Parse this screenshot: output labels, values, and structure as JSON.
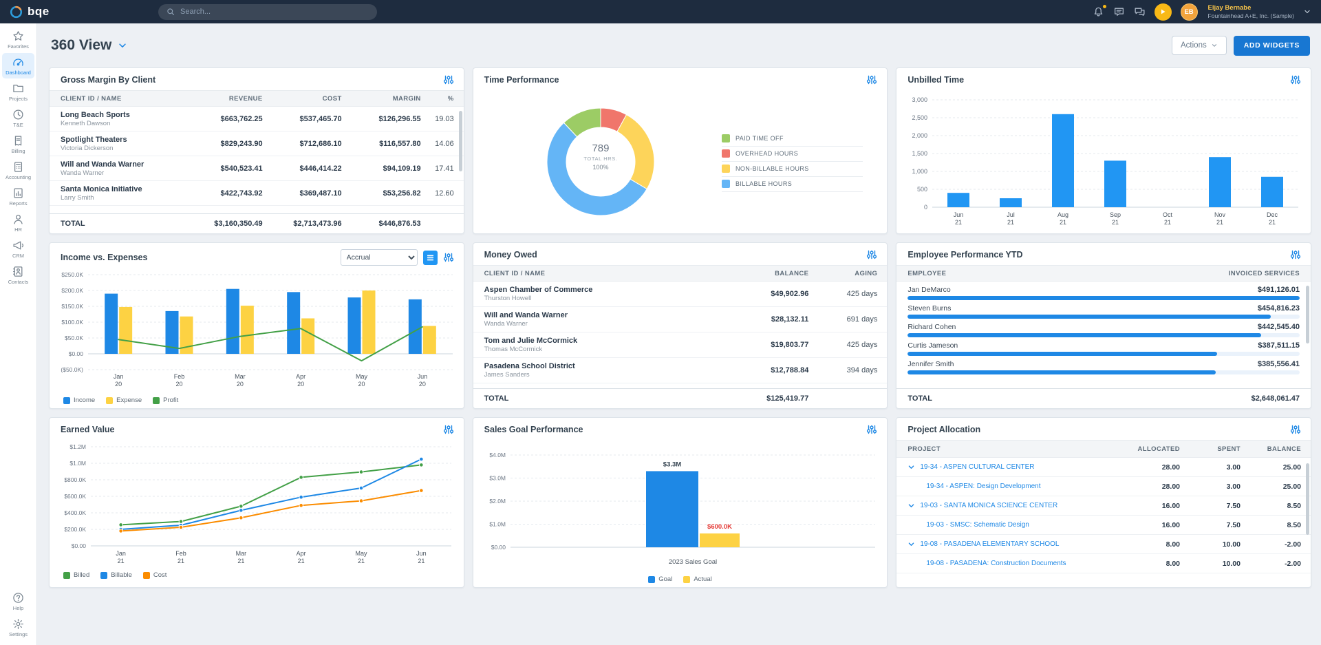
{
  "topbar": {
    "logo_text": "bqe",
    "search_placeholder": "Search...",
    "user": {
      "name": "Eljay Bernabe",
      "company": "Fountainhead A+E, Inc. (Sample)",
      "initials": "EB"
    }
  },
  "sidebar": {
    "items": [
      {
        "label": "Favorites",
        "icon": "star-icon",
        "active": false
      },
      {
        "label": "Dashboard",
        "icon": "gauge-icon",
        "active": true
      },
      {
        "label": "Projects",
        "icon": "folder-icon",
        "active": false
      },
      {
        "label": "T&E",
        "icon": "clock-icon",
        "active": false
      },
      {
        "label": "Billing",
        "icon": "receipt-icon",
        "active": false
      },
      {
        "label": "Accounting",
        "icon": "calculator-icon",
        "active": false
      },
      {
        "label": "Reports",
        "icon": "report-icon",
        "active": false
      },
      {
        "label": "HR",
        "icon": "person-icon",
        "active": false
      },
      {
        "label": "CRM",
        "icon": "megaphone-icon",
        "active": false
      },
      {
        "label": "Contacts",
        "icon": "contacts-icon",
        "active": false
      }
    ],
    "bottom": [
      {
        "label": "Help",
        "icon": "help-icon"
      },
      {
        "label": "Settings",
        "icon": "gear-icon"
      }
    ]
  },
  "page": {
    "title": "360 View",
    "actions": "Actions",
    "add_widgets": "ADD WIDGETS"
  },
  "gross_margin": {
    "title": "Gross Margin By Client",
    "columns": [
      "CLIENT ID / NAME",
      "REVENUE",
      "COST",
      "MARGIN",
      "%"
    ],
    "rows": [
      {
        "name": "Long Beach Sports",
        "sub": "Kenneth Dawson",
        "revenue": "$663,762.25",
        "cost": "$537,465.70",
        "margin": "$126,296.55",
        "pct": "19.03"
      },
      {
        "name": "Spotlight Theaters",
        "sub": "Victoria Dickerson",
        "revenue": "$829,243.90",
        "cost": "$712,686.10",
        "margin": "$116,557.80",
        "pct": "14.06"
      },
      {
        "name": "Will and Wanda Warner",
        "sub": "Wanda Warner",
        "revenue": "$540,523.41",
        "cost": "$446,414.22",
        "margin": "$94,109.19",
        "pct": "17.41"
      },
      {
        "name": "Santa Monica Initiative",
        "sub": "Larry Smith",
        "revenue": "$422,743.92",
        "cost": "$369,487.10",
        "margin": "$53,256.82",
        "pct": "12.60"
      }
    ],
    "total": {
      "label": "TOTAL",
      "revenue": "$3,160,350.49",
      "cost": "$2,713,473.96",
      "margin": "$446,876.53"
    }
  },
  "time_performance": {
    "title": "Time Performance",
    "center": {
      "value": "789",
      "label": "TOTAL HRS.",
      "percent": "100%"
    },
    "chart_data": {
      "type": "pie",
      "total_hours": 789,
      "slices": [
        {
          "label": "PAID TIME OFF",
          "value": 95,
          "color": "#9CCC65"
        },
        {
          "label": "OVERHEAD HOURS",
          "value": 63,
          "color": "#F0766B"
        },
        {
          "label": "NON-BILLABLE HOURS",
          "value": 201,
          "color": "#FDD45A"
        },
        {
          "label": "BILLABLE HOURS",
          "value": 430,
          "color": "#64B5F6"
        }
      ]
    }
  },
  "unbilled_time": {
    "title": "Unbilled Time",
    "chart_data": {
      "type": "bar",
      "categories": [
        "Jun",
        "Jul",
        "Aug",
        "Sep",
        "Oct",
        "Nov",
        "Dec"
      ],
      "year": "21",
      "values": [
        400,
        250,
        2600,
        1300,
        0,
        1400,
        850
      ],
      "color": "#2196F3",
      "ylim": [
        0,
        3000
      ],
      "yticks": [
        0,
        500,
        1000,
        1500,
        2000,
        2500,
        3000
      ],
      "ytick_labels": [
        "0",
        "500",
        "1,000",
        "1,500",
        "2,000",
        "2,500",
        "3,000"
      ]
    }
  },
  "income_expenses": {
    "title": "Income vs. Expenses",
    "basis_selected": "Accrual",
    "chart_data": {
      "type": "bar+line",
      "categories": [
        "Jan",
        "Feb",
        "Mar",
        "Apr",
        "May",
        "Jun"
      ],
      "year": "20",
      "series": [
        {
          "name": "Income",
          "kind": "bar",
          "color": "#1E88E5",
          "values": [
            190000,
            135000,
            205000,
            195000,
            178000,
            172000
          ]
        },
        {
          "name": "Expense",
          "kind": "bar",
          "color": "#FDD243",
          "values": [
            148000,
            118000,
            152000,
            112000,
            200000,
            88000
          ]
        },
        {
          "name": "Profit",
          "kind": "line",
          "color": "#43A047",
          "values": [
            45000,
            17000,
            55000,
            80000,
            -22000,
            85000
          ]
        }
      ],
      "ylim": [
        -50000,
        250000
      ],
      "yticks": [
        250000,
        200000,
        150000,
        100000,
        50000,
        0,
        -50000
      ],
      "ytick_labels": [
        "$250.0K",
        "$200.0K",
        "$150.0K",
        "$100.0K",
        "$50.0K",
        "$0.00",
        "($50.0K)"
      ]
    }
  },
  "money_owed": {
    "title": "Money Owed",
    "columns": [
      "CLIENT ID / NAME",
      "BALANCE",
      "AGING"
    ],
    "rows": [
      {
        "name": "Aspen Chamber of Commerce",
        "sub": "Thurston Howell",
        "balance": "$49,902.96",
        "aging": "425 days"
      },
      {
        "name": "Will and Wanda Warner",
        "sub": "Wanda Warner",
        "balance": "$28,132.11",
        "aging": "691 days"
      },
      {
        "name": "Tom and Julie McCormick",
        "sub": "Thomas McCormick",
        "balance": "$19,803.77",
        "aging": "425 days"
      },
      {
        "name": "Pasadena School District",
        "sub": "James Sanders",
        "balance": "$12,788.84",
        "aging": "394 days"
      }
    ],
    "total": {
      "label": "TOTAL",
      "balance": "$125,419.77"
    }
  },
  "employee_performance": {
    "title": "Employee Performance YTD",
    "columns": [
      "EMPLOYEE",
      "INVOICED SERVICES"
    ],
    "bar_color": "#1E88E5",
    "rows": [
      {
        "name": "Jan DeMarco",
        "amount": "$491,126.01",
        "value": 491126.01
      },
      {
        "name": "Steven Burns",
        "amount": "$454,816.23",
        "value": 454816.23
      },
      {
        "name": "Richard Cohen",
        "amount": "$442,545.40",
        "value": 442545.4
      },
      {
        "name": "Curtis Jameson",
        "amount": "$387,511.15",
        "value": 387511.15
      },
      {
        "name": "Jennifer Smith",
        "amount": "$385,556.41",
        "value": 385556.41
      }
    ],
    "total": {
      "label": "TOTAL",
      "amount": "$2,648,061.47"
    }
  },
  "earned_value": {
    "title": "Earned Value",
    "chart_data": {
      "type": "line",
      "categories": [
        "Jan",
        "Feb",
        "Mar",
        "Apr",
        "May",
        "Jun"
      ],
      "year": "21",
      "series": [
        {
          "name": "Billed",
          "color": "#43A047",
          "values": [
            255000,
            295000,
            480000,
            830000,
            895000,
            980000
          ]
        },
        {
          "name": "Billable",
          "color": "#1E88E5",
          "values": [
            200000,
            250000,
            430000,
            590000,
            700000,
            1050000
          ]
        },
        {
          "name": "Cost",
          "color": "#FB8C00",
          "values": [
            180000,
            225000,
            340000,
            490000,
            545000,
            670000
          ]
        }
      ],
      "ylim": [
        0,
        1200000
      ],
      "yticks": [
        1200000,
        1000000,
        800000,
        600000,
        400000,
        200000,
        0
      ],
      "ytick_labels": [
        "$1.2M",
        "$1.0M",
        "$800.0K",
        "$600.0K",
        "$400.0K",
        "$200.0K",
        "$0.00"
      ]
    }
  },
  "sales_goal": {
    "title": "Sales Goal Performance",
    "chart_data": {
      "type": "bar",
      "category": "2023 Sales Goal",
      "series": [
        {
          "name": "Goal",
          "color": "#1E88E5",
          "value": 3300000,
          "label": "$3.3M",
          "label_color": "#33424F"
        },
        {
          "name": "Actual",
          "color": "#FDD243",
          "value": 600000,
          "label": "$600.0K",
          "label_color": "#E53935"
        }
      ],
      "ylim": [
        0,
        4000000
      ],
      "yticks": [
        4000000,
        3000000,
        2000000,
        1000000,
        0
      ],
      "ytick_labels": [
        "$4.0M",
        "$3.0M",
        "$2.0M",
        "$1.0M",
        "$0.00"
      ]
    }
  },
  "project_allocation": {
    "title": "Project Allocation",
    "columns": [
      "PROJECT",
      "ALLOCATED",
      "SPENT",
      "BALANCE"
    ],
    "rows": [
      {
        "name": "19-34 - ASPEN CULTURAL CENTER",
        "level": 0,
        "allocated": "28.00",
        "spent": "3.00",
        "balance": "25.00"
      },
      {
        "name": "19-34 - ASPEN: Design Development",
        "level": 1,
        "allocated": "28.00",
        "spent": "3.00",
        "balance": "25.00"
      },
      {
        "name": "19-03 - SANTA MONICA SCIENCE CENTER",
        "level": 0,
        "allocated": "16.00",
        "spent": "7.50",
        "balance": "8.50"
      },
      {
        "name": "19-03 - SMSC: Schematic Design",
        "level": 1,
        "allocated": "16.00",
        "spent": "7.50",
        "balance": "8.50"
      },
      {
        "name": "19-08 - PASADENA ELEMENTARY SCHOOL",
        "level": 0,
        "allocated": "8.00",
        "spent": "10.00",
        "balance": "-2.00"
      },
      {
        "name": "19-08 - PASADENA: Construction Documents",
        "level": 1,
        "allocated": "8.00",
        "spent": "10.00",
        "balance": "-2.00"
      }
    ]
  }
}
